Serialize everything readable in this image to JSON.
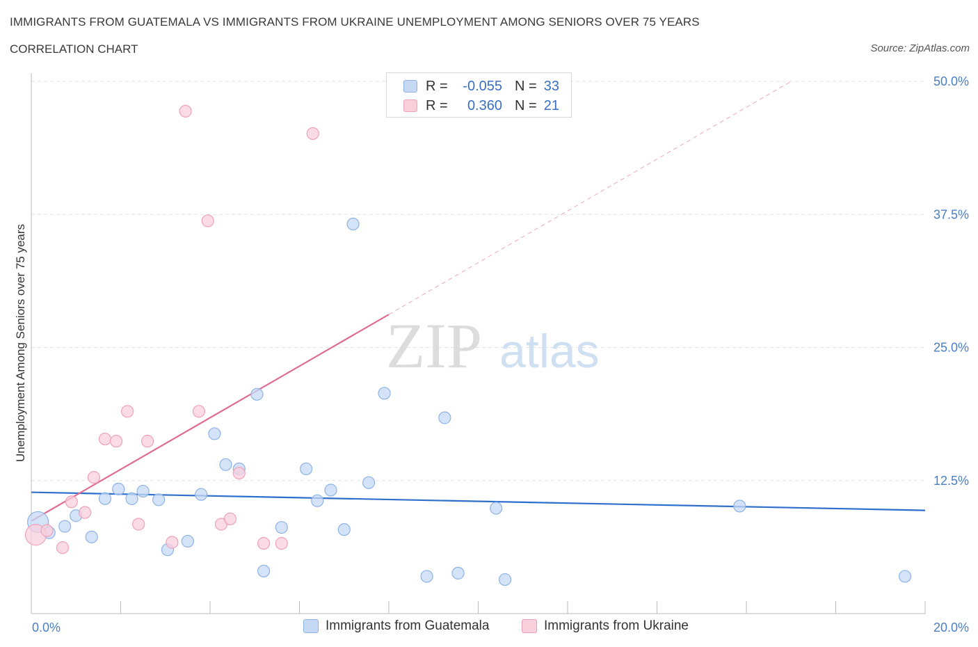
{
  "title": "IMMIGRANTS FROM GUATEMALA VS IMMIGRANTS FROM UKRAINE UNEMPLOYMENT AMONG SENIORS OVER 75 YEARS",
  "subtitle": "CORRELATION CHART",
  "source": "Source: ZipAtlas.com",
  "watermark": {
    "zip": "ZIP",
    "atlas": "atlas"
  },
  "colors": {
    "guatemala_fill": "#c5d9f5",
    "guatemala_stroke": "#8db3e6",
    "guatemala_line": "#2f6fcc",
    "ukraine_fill": "#f9cfdc",
    "ukraine_stroke": "#eea1ba",
    "ukraine_line": "#e06b95",
    "tick_text": "#4a7fc7"
  },
  "legend": {
    "rows": [
      {
        "series": "guatemala",
        "r_label": "R =",
        "r_value": "-0.055",
        "n_label": "N =",
        "n_value": "33"
      },
      {
        "series": "ukraine",
        "r_label": "R =",
        "r_value": "0.360",
        "n_label": "N =",
        "n_value": "21"
      }
    ]
  },
  "bottom_legend": {
    "guatemala": "Immigrants from Guatemala",
    "ukraine": "Immigrants from Ukraine"
  },
  "chart_data": {
    "type": "scatter",
    "title": "IMMIGRANTS FROM GUATEMALA VS IMMIGRANTS FROM UKRAINE UNEMPLOYMENT AMONG SENIORS OVER 75 YEARS",
    "xlabel": "",
    "ylabel": "Unemployment Among Seniors over 75 years",
    "xlim": [
      0,
      20
    ],
    "ylim": [
      0,
      50
    ],
    "x_tick_labels": [
      {
        "value": 0,
        "label": "0.0%"
      },
      {
        "value": 20,
        "label": "20.0%"
      }
    ],
    "y_tick_labels": [
      {
        "value": 12.5,
        "label": "12.5%"
      },
      {
        "value": 25,
        "label": "25.0%"
      },
      {
        "value": 37.5,
        "label": "37.5%"
      },
      {
        "value": 50,
        "label": "50.0%"
      }
    ],
    "grid": true,
    "series": [
      {
        "name": "Immigrants from Guatemala",
        "key": "guatemala",
        "points": [
          {
            "x": 0.15,
            "y": 8.6,
            "size": "large"
          },
          {
            "x": 0.4,
            "y": 7.6
          },
          {
            "x": 0.75,
            "y": 8.2
          },
          {
            "x": 1.0,
            "y": 9.2
          },
          {
            "x": 1.35,
            "y": 7.2
          },
          {
            "x": 1.65,
            "y": 10.8
          },
          {
            "x": 1.95,
            "y": 11.7
          },
          {
            "x": 2.25,
            "y": 10.8
          },
          {
            "x": 2.5,
            "y": 11.5
          },
          {
            "x": 2.85,
            "y": 10.7
          },
          {
            "x": 3.05,
            "y": 6.0
          },
          {
            "x": 3.5,
            "y": 6.8
          },
          {
            "x": 3.8,
            "y": 11.2
          },
          {
            "x": 4.1,
            "y": 16.9
          },
          {
            "x": 4.35,
            "y": 14.0
          },
          {
            "x": 4.65,
            "y": 13.6
          },
          {
            "x": 5.05,
            "y": 20.6
          },
          {
            "x": 5.2,
            "y": 4.0
          },
          {
            "x": 5.6,
            "y": 8.1
          },
          {
            "x": 6.15,
            "y": 13.6
          },
          {
            "x": 6.4,
            "y": 10.6
          },
          {
            "x": 6.7,
            "y": 11.6
          },
          {
            "x": 7.0,
            "y": 7.9
          },
          {
            "x": 7.2,
            "y": 36.6
          },
          {
            "x": 7.55,
            "y": 12.3
          },
          {
            "x": 7.9,
            "y": 20.7
          },
          {
            "x": 8.85,
            "y": 3.5
          },
          {
            "x": 9.25,
            "y": 18.4
          },
          {
            "x": 9.55,
            "y": 3.8
          },
          {
            "x": 10.4,
            "y": 9.9
          },
          {
            "x": 10.6,
            "y": 3.2
          },
          {
            "x": 15.85,
            "y": 10.1
          },
          {
            "x": 19.55,
            "y": 3.5
          }
        ],
        "trend": {
          "x": [
            0,
            20
          ],
          "y": [
            11.4,
            9.7
          ],
          "style": "solid"
        }
      },
      {
        "name": "Immigrants from Ukraine",
        "key": "ukraine",
        "points": [
          {
            "x": 0.1,
            "y": 7.4,
            "size": "large"
          },
          {
            "x": 0.35,
            "y": 7.8
          },
          {
            "x": 0.7,
            "y": 6.2
          },
          {
            "x": 0.9,
            "y": 10.5
          },
          {
            "x": 1.2,
            "y": 9.5
          },
          {
            "x": 1.4,
            "y": 12.8
          },
          {
            "x": 1.65,
            "y": 16.4
          },
          {
            "x": 1.9,
            "y": 16.2
          },
          {
            "x": 2.15,
            "y": 19.0
          },
          {
            "x": 2.4,
            "y": 8.4
          },
          {
            "x": 2.6,
            "y": 16.2
          },
          {
            "x": 3.15,
            "y": 6.7
          },
          {
            "x": 3.45,
            "y": 47.2
          },
          {
            "x": 3.75,
            "y": 19.0
          },
          {
            "x": 3.95,
            "y": 36.9
          },
          {
            "x": 4.25,
            "y": 8.4
          },
          {
            "x": 4.45,
            "y": 8.9
          },
          {
            "x": 4.65,
            "y": 13.2
          },
          {
            "x": 5.2,
            "y": 6.6
          },
          {
            "x": 5.6,
            "y": 6.6
          },
          {
            "x": 6.3,
            "y": 45.1
          }
        ],
        "trend": {
          "x": [
            0,
            8
          ],
          "y": [
            8.7,
            28.1
          ],
          "style": "solid"
        },
        "trend_extension": {
          "x": [
            8,
            17
          ],
          "y": [
            28.1,
            50
          ],
          "style": "dashed"
        }
      }
    ]
  }
}
